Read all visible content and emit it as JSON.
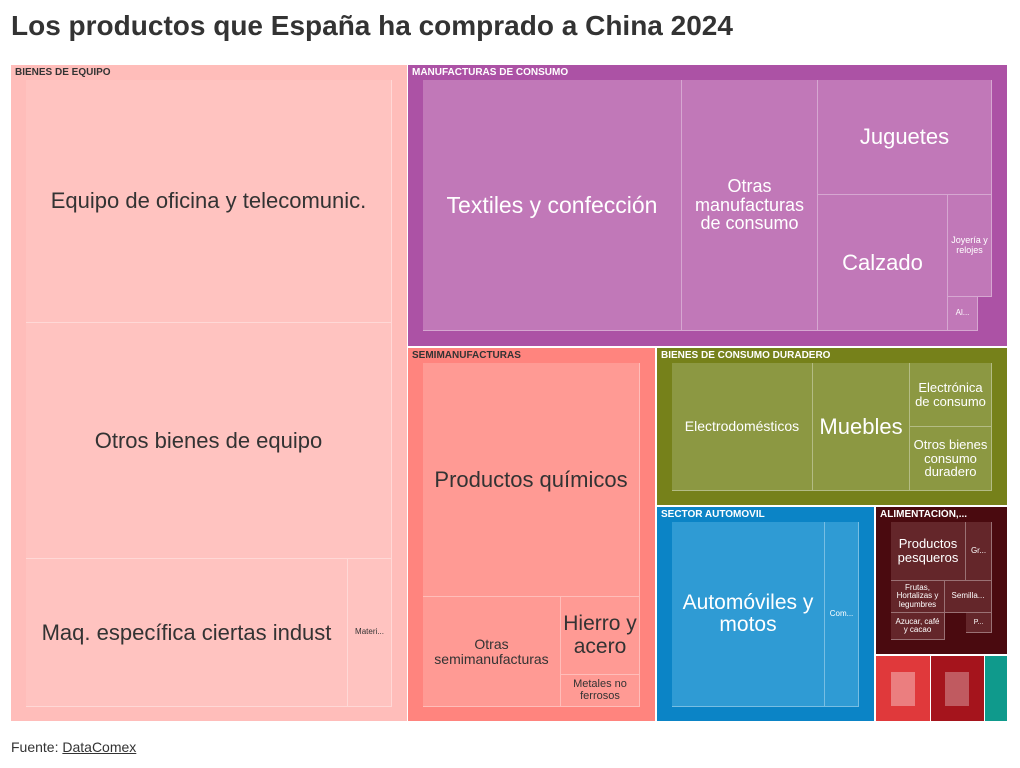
{
  "title": "Los productos que España ha comprado a China 2024",
  "footer": {
    "prefix": "Fuente: ",
    "link_text": "DataComex"
  },
  "chart_data": {
    "type": "treemap",
    "groups": [
      {
        "name": "BIENES DE EQUIPO",
        "color": "#ffc3c0",
        "header_color": "#ffbdba",
        "children": [
          {
            "name": "Equipo de oficina y telecomunic.",
            "value": 39
          },
          {
            "name": "Otros bienes de equipo",
            "value": 38
          },
          {
            "name": "Maq. específica ciertas indust",
            "value": 19
          },
          {
            "name": "Materi...",
            "value": 3
          }
        ]
      },
      {
        "name": "MANUFACTURAS DE CONSUMO",
        "color": "#c178b8",
        "header_color": "#ac52a5",
        "children": [
          {
            "name": "Textiles y confección",
            "value": 20
          },
          {
            "name": "Otras manufacturas de consumo",
            "value": 11
          },
          {
            "name": "Juguetes",
            "value": 6
          },
          {
            "name": "Calzado",
            "value": 7
          },
          {
            "name": "Joyería y relojes",
            "value": 1.5
          },
          {
            "name": "Al...",
            "value": 0.6
          }
        ]
      },
      {
        "name": "SEMIMANUFACTURAS",
        "color": "#ff9a94",
        "header_color": "#ff847e",
        "children": [
          {
            "name": "Productos químicos",
            "value": 14
          },
          {
            "name": "Otras semimanufacturas",
            "value": 4
          },
          {
            "name": "Hierro y acero",
            "value": 2.3
          },
          {
            "name": "Metales no ferrosos",
            "value": 1
          }
        ]
      },
      {
        "name": "BIENES DE CONSUMO DURADERO",
        "color": "#8c9842",
        "header_color": "#76811a",
        "children": [
          {
            "name": "Electrodomésticos",
            "value": 5.5
          },
          {
            "name": "Muebles",
            "value": 3.5
          },
          {
            "name": "Electrónica de consumo",
            "value": 1.3
          },
          {
            "name": "Otros bienes consumo duradero",
            "value": 2.5
          }
        ]
      },
      {
        "name": "SECTOR AUTOMOVIL",
        "color": "#2f9bd4",
        "header_color": "#0b84c6",
        "children": [
          {
            "name": "Automóviles y motos",
            "value": 8
          },
          {
            "name": "Com...",
            "value": 1.7
          }
        ]
      },
      {
        "name": "ALIMENTACIÓN,...",
        "color": "#64262a",
        "header_color": "#4a0a0f",
        "children": [
          {
            "name": "Productos pesqueros",
            "value": 1.5
          },
          {
            "name": "Gr...",
            "value": 0.5
          },
          {
            "name": "Frutas, Hortalizas y legumbres",
            "value": 0.6
          },
          {
            "name": "Semilla...",
            "value": 0.4
          },
          {
            "name": "Azucar, café y cacao",
            "value": 0.5
          },
          {
            "name": "P...",
            "value": 0.2
          }
        ]
      },
      {
        "name": "",
        "color": "#e0393b",
        "header_color": "#e0393b",
        "children": []
      },
      {
        "name": "",
        "color": "#a5141c",
        "header_color": "#a5141c",
        "children": []
      },
      {
        "name": "",
        "color": "#0f9a8c",
        "header_color": "#0f9a8c",
        "children": []
      }
    ]
  }
}
